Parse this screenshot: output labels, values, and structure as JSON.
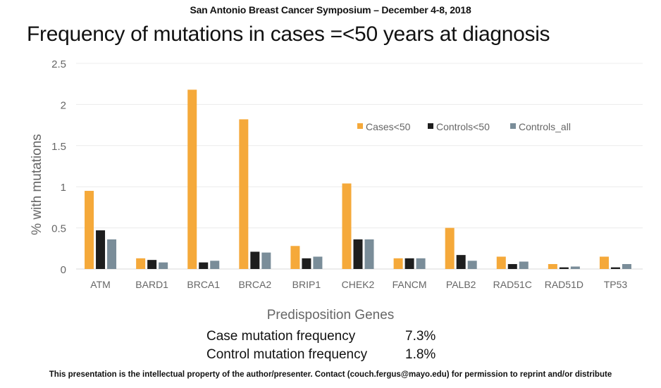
{
  "header": {
    "conference": "San Antonio Breast Cancer Symposium – December 4-8, 2018",
    "title": "Frequency of mutations in cases =<50 years at diagnosis"
  },
  "chart_data": {
    "type": "bar",
    "title": "Frequency of mutations in cases =<50 years at diagnosis",
    "xlabel": "Predisposition Genes",
    "ylabel": "% with mutations",
    "ylim": [
      0,
      2.5
    ],
    "yticks": [
      "0",
      "0.5",
      "1",
      "1.5",
      "2",
      "2.5"
    ],
    "ytick_values": [
      0,
      0.5,
      1,
      1.5,
      2,
      2.5
    ],
    "grid": true,
    "legend_position": "top-right",
    "categories": [
      "ATM",
      "BARD1",
      "BRCA1",
      "BRCA2",
      "BRIP1",
      "CHEK2",
      "FANCM",
      "PALB2",
      "RAD51C",
      "RAD51D",
      "TP53"
    ],
    "series": [
      {
        "name": "Cases<50",
        "color": "#f5a93a",
        "values": [
          0.95,
          0.13,
          2.18,
          1.82,
          0.28,
          1.04,
          0.13,
          0.5,
          0.15,
          0.06,
          0.15
        ]
      },
      {
        "name": "Controls<50",
        "color": "#1e1e1e",
        "values": [
          0.47,
          0.11,
          0.08,
          0.21,
          0.13,
          0.36,
          0.13,
          0.17,
          0.06,
          0.02,
          0.02
        ]
      },
      {
        "name": "Controls_all",
        "color": "#7a8d99",
        "values": [
          0.36,
          0.08,
          0.1,
          0.2,
          0.15,
          0.36,
          0.13,
          0.1,
          0.09,
          0.03,
          0.06
        ]
      }
    ]
  },
  "stats": [
    {
      "label": "Case mutation frequency",
      "value": "7.3%"
    },
    {
      "label": "Control mutation frequency",
      "value": "1.8%"
    }
  ],
  "footer": "This presentation is the intellectual property of the author/presenter.  Contact (couch.fergus@mayo.edu) for permission to reprint and/or distribute"
}
